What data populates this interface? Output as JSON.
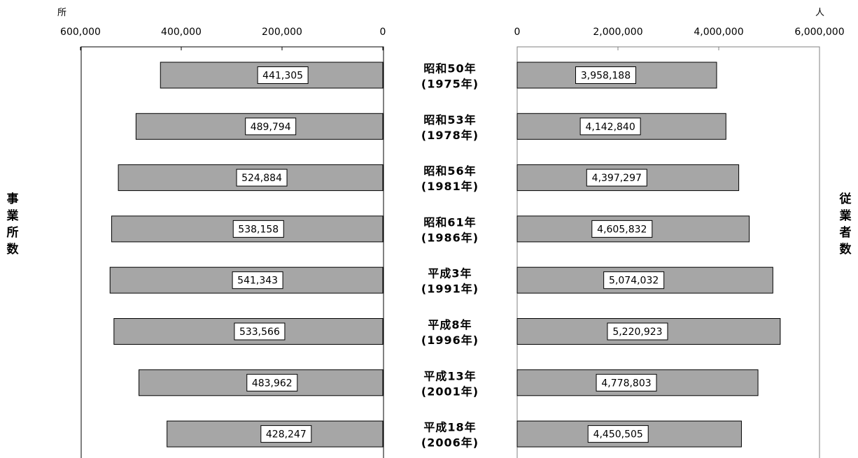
{
  "chart_data": [
    {
      "type": "bar",
      "orientation": "horizontal",
      "x_direction": "reversed",
      "side_label": "事業所数",
      "unit": "所",
      "xlim": [
        0,
        600000
      ],
      "tick_labels": [
        "600,000",
        "400,000",
        "200,000",
        "0"
      ],
      "categories": [
        [
          "昭和50年",
          "(1975年)"
        ],
        [
          "昭和53年",
          "(1978年)"
        ],
        [
          "昭和56年",
          "(1981年)"
        ],
        [
          "昭和61年",
          "(1986年)"
        ],
        [
          "平成3年",
          "(1991年)"
        ],
        [
          "平成8年",
          "(1996年)"
        ],
        [
          "平成13年",
          "(2001年)"
        ],
        [
          "平成18年",
          "(2006年)"
        ]
      ],
      "values": [
        441305,
        489794,
        524884,
        538158,
        541343,
        533566,
        483962,
        428247
      ],
      "value_labels": [
        "441,305",
        "489,794",
        "524,884",
        "538,158",
        "541,343",
        "533,566",
        "483,962",
        "428,247"
      ],
      "bar_color": "#a6a6a6"
    },
    {
      "type": "bar",
      "orientation": "horizontal",
      "side_label": "従業者数",
      "unit": "人",
      "xlim": [
        0,
        6000000
      ],
      "tick_labels": [
        "0",
        "2,000,000",
        "4,000,000",
        "6,000,000"
      ],
      "values": [
        3958188,
        4142840,
        4397297,
        4605832,
        5074032,
        5220923,
        4778803,
        4450505
      ],
      "value_labels": [
        "3,958,188",
        "4,142,840",
        "4,397,297",
        "4,605,832",
        "5,074,032",
        "5,220,923",
        "4,778,803",
        "4,450,505"
      ],
      "bar_color": "#a6a6a6"
    }
  ]
}
